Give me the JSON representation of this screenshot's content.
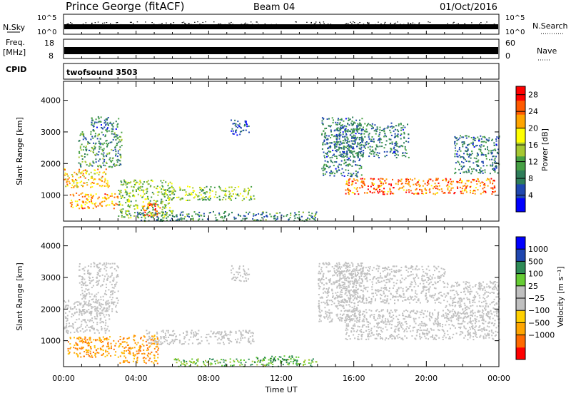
{
  "header": {
    "station": "Prince George (fitACF)",
    "beam": "Beam 04",
    "date": "01/Oct/2016"
  },
  "strip_labels": {
    "nsky": "N.Sky",
    "nsky_tick_top": "10^5",
    "nsky_tick_bottom": "10^0",
    "nsearch": "N.Search",
    "nsearch_tick_top": "10^5",
    "nsearch_tick_bottom": "10^0",
    "freq_line1": "Freq.",
    "freq_line2": "[MHz]",
    "freq_tick_top": "18",
    "freq_tick_bottom": "8",
    "nave": "Nave",
    "nave_tick_top": "60",
    "nave_tick_bottom": "0",
    "cpid": "CPID",
    "program": "twofsound 3503"
  },
  "colors": {
    "power_scale": [
      "#0000ff",
      "#1f47b0",
      "#2e7d5a",
      "#46a044",
      "#a6c832",
      "#ffff00",
      "#ffa500",
      "#ff5a00",
      "#ff0000"
    ],
    "velocity_scale": [
      "#ff0000",
      "#ff6a00",
      "#ffa500",
      "#ffd000",
      "#c0c0c0",
      "#c0c0c0",
      "#66cc33",
      "#2e8b57",
      "#1f47b0",
      "#0000ff"
    ],
    "ground_scatter": "#c0c0c0"
  },
  "chart_data": [
    {
      "type": "heatmap",
      "name": "power",
      "xlabel": "",
      "ylabel": "Slant Range [km]",
      "xlim": [
        0,
        24
      ],
      "ylim": [
        180,
        4600
      ],
      "yticks": [
        "1000",
        "2000",
        "3000",
        "4000"
      ],
      "colorbar_label": "Power [dB]",
      "colorbar_ticks": [
        "4",
        "8",
        "12",
        "16",
        "20",
        "24",
        "28"
      ],
      "colorbar_range": [
        0,
        30
      ],
      "regions": [
        {
          "t0": 0.0,
          "t1": 2.5,
          "r0": 1250,
          "r1": 1850,
          "level": 20
        },
        {
          "t0": 0.3,
          "t1": 3.0,
          "r0": 600,
          "r1": 1100,
          "level": 22
        },
        {
          "t0": 0.8,
          "t1": 3.2,
          "r0": 1900,
          "r1": 3100,
          "level": 10
        },
        {
          "t0": 1.5,
          "t1": 3.0,
          "r0": 3100,
          "r1": 3500,
          "level": 8
        },
        {
          "t0": 3.0,
          "t1": 6.0,
          "r0": 300,
          "r1": 1500,
          "level": 14
        },
        {
          "t0": 4.3,
          "t1": 5.3,
          "r0": 350,
          "r1": 750,
          "level": 26
        },
        {
          "t0": 5.5,
          "t1": 10.5,
          "r0": 850,
          "r1": 1300,
          "level": 14
        },
        {
          "t0": 4.0,
          "t1": 14.0,
          "r0": 200,
          "r1": 500,
          "level": 9
        },
        {
          "t0": 9.2,
          "t1": 10.2,
          "r0": 2900,
          "r1": 3400,
          "level": 5
        },
        {
          "t0": 14.2,
          "t1": 16.5,
          "r0": 1600,
          "r1": 3500,
          "level": 8
        },
        {
          "t0": 15.5,
          "t1": 23.8,
          "r0": 1050,
          "r1": 1550,
          "level": 24
        },
        {
          "t0": 15.0,
          "t1": 19.0,
          "r0": 2200,
          "r1": 3300,
          "level": 8
        },
        {
          "t0": 21.5,
          "t1": 24.0,
          "r0": 1700,
          "r1": 2900,
          "level": 8
        }
      ]
    },
    {
      "type": "heatmap",
      "name": "velocity",
      "xlabel": "Time UT",
      "ylabel": "Slant Range [km]",
      "xlim": [
        0,
        24
      ],
      "ylim": [
        180,
        4600
      ],
      "xticks": [
        "00:00",
        "04:00",
        "08:00",
        "12:00",
        "16:00",
        "20:00",
        "00:00"
      ],
      "yticks": [
        "1000",
        "2000",
        "3000",
        "4000"
      ],
      "colorbar_label": "Velocity [m s⁻¹]",
      "colorbar_ticks": [
        "1000",
        "500",
        "100",
        "25",
        "−25",
        "−100",
        "−500",
        "−1000"
      ],
      "regions": [
        {
          "t0": 0.0,
          "t1": 2.5,
          "r0": 1250,
          "r1": 2300,
          "class": "gs"
        },
        {
          "t0": 0.8,
          "t1": 3.0,
          "r0": 1900,
          "r1": 3500,
          "class": "gs"
        },
        {
          "t0": 0.2,
          "t1": 3.0,
          "r0": 500,
          "r1": 1150,
          "class": "neg_orange"
        },
        {
          "t0": 3.0,
          "t1": 5.2,
          "r0": 300,
          "r1": 1200,
          "class": "neg_orange"
        },
        {
          "t0": 4.5,
          "t1": 10.5,
          "r0": 900,
          "r1": 1350,
          "class": "gs"
        },
        {
          "t0": 6.0,
          "t1": 14.0,
          "r0": 200,
          "r1": 450,
          "class": "pos_green"
        },
        {
          "t0": 10.5,
          "t1": 13.0,
          "r0": 300,
          "r1": 550,
          "class": "pos_darkgreen"
        },
        {
          "t0": 9.2,
          "t1": 10.2,
          "r0": 2900,
          "r1": 3400,
          "class": "gs"
        },
        {
          "t0": 14.0,
          "t1": 16.5,
          "r0": 1600,
          "r1": 3500,
          "class": "gs"
        },
        {
          "t0": 15.5,
          "t1": 24.0,
          "r0": 1050,
          "r1": 2000,
          "class": "gs"
        },
        {
          "t0": 15.0,
          "t1": 21.0,
          "r0": 2200,
          "r1": 3400,
          "class": "gs"
        },
        {
          "t0": 21.0,
          "t1": 24.0,
          "r0": 1700,
          "r1": 2900,
          "class": "gs"
        }
      ]
    }
  ]
}
